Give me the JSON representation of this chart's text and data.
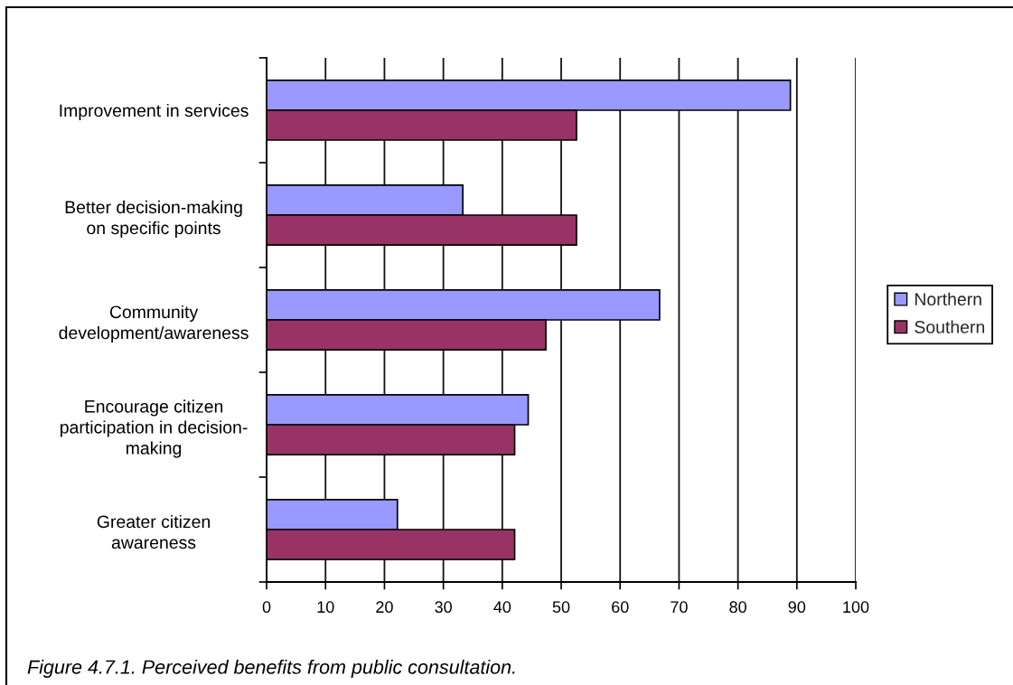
{
  "chart_data": {
    "type": "bar",
    "orientation": "horizontal",
    "categories": [
      "Improvement in services",
      "Better decision-making\non specific points",
      "Community\ndevelopment/awareness",
      "Encourage citizen\nparticipation in decision-\nmaking",
      "Greater citizen\nawareness"
    ],
    "series": [
      {
        "name": "Northern",
        "color": "#9999ff",
        "values": [
          88.9,
          33.3,
          66.7,
          44.4,
          22.2
        ]
      },
      {
        "name": "Southern",
        "color": "#993366",
        "values": [
          52.6,
          52.6,
          47.4,
          42.1,
          42.1
        ]
      }
    ],
    "xlim": [
      0,
      100
    ],
    "xticks": [
      0,
      10,
      20,
      30,
      40,
      50,
      60,
      70,
      80,
      90,
      100
    ],
    "grid": "x",
    "legend": "right",
    "annotations": [
      "Figure 4.7.1. Perceived benefits from public consultation."
    ]
  }
}
